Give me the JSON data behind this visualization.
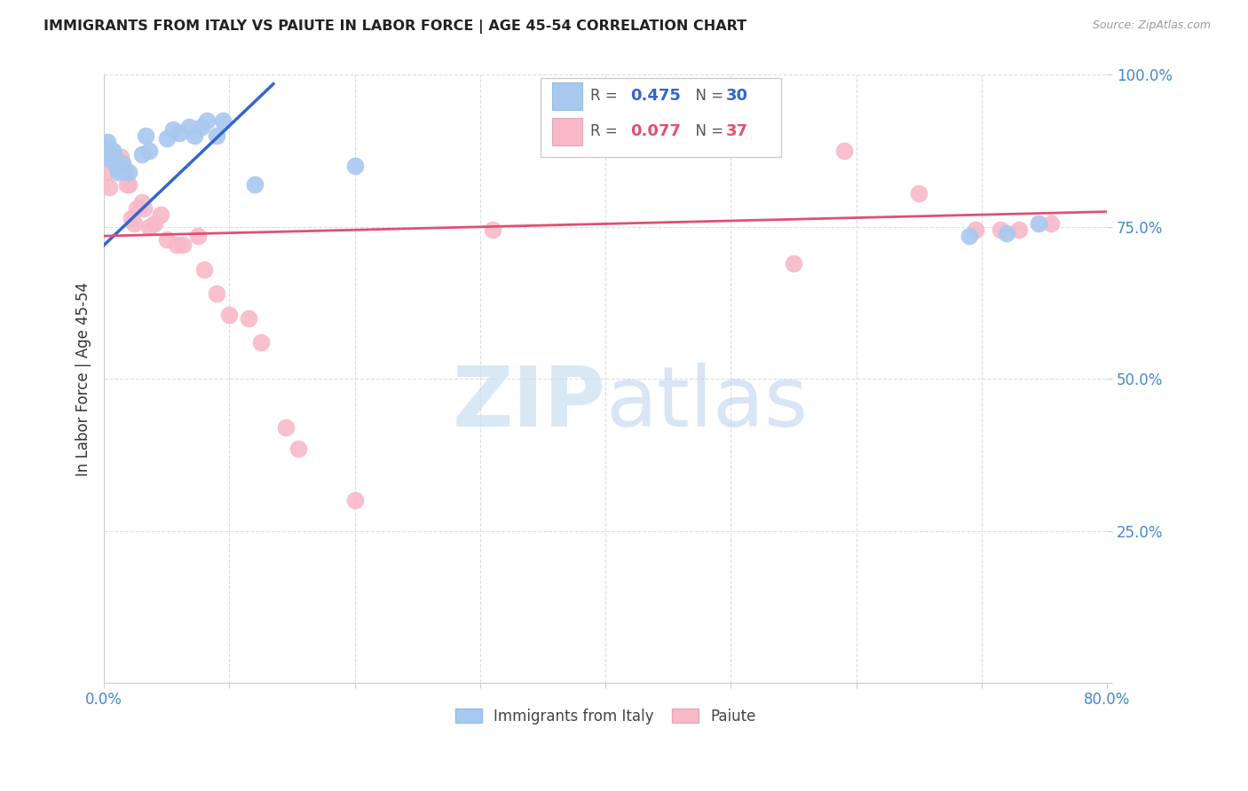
{
  "title": "IMMIGRANTS FROM ITALY VS PAIUTE IN LABOR FORCE | AGE 45-54 CORRELATION CHART",
  "source": "Source: ZipAtlas.com",
  "ylabel": "In Labor Force | Age 45-54",
  "x_min": 0.0,
  "x_max": 0.8,
  "y_min": 0.0,
  "y_max": 1.0,
  "x_ticks": [
    0.0,
    0.1,
    0.2,
    0.3,
    0.4,
    0.5,
    0.6,
    0.7,
    0.8
  ],
  "x_tick_labels": [
    "0.0%",
    "",
    "",
    "",
    "",
    "",
    "",
    "",
    "80.0%"
  ],
  "y_ticks": [
    0.0,
    0.25,
    0.5,
    0.75,
    1.0
  ],
  "y_tick_labels": [
    "",
    "25.0%",
    "50.0%",
    "75.0%",
    "100.0%"
  ],
  "italy_R": 0.475,
  "italy_N": 30,
  "paiute_R": 0.077,
  "paiute_N": 37,
  "italy_color": "#a8c8f0",
  "paiute_color": "#f8b8c8",
  "italy_line_color": "#3366cc",
  "paiute_line_color": "#e05070",
  "italy_scatter": [
    [
      0.002,
      0.88
    ],
    [
      0.003,
      0.89
    ],
    [
      0.004,
      0.87
    ],
    [
      0.005,
      0.86
    ],
    [
      0.006,
      0.875
    ],
    [
      0.007,
      0.875
    ],
    [
      0.008,
      0.87
    ],
    [
      0.01,
      0.85
    ],
    [
      0.011,
      0.84
    ],
    [
      0.013,
      0.845
    ],
    [
      0.015,
      0.855
    ],
    [
      0.017,
      0.84
    ],
    [
      0.02,
      0.84
    ],
    [
      0.03,
      0.87
    ],
    [
      0.033,
      0.9
    ],
    [
      0.036,
      0.875
    ],
    [
      0.05,
      0.895
    ],
    [
      0.055,
      0.91
    ],
    [
      0.06,
      0.905
    ],
    [
      0.068,
      0.915
    ],
    [
      0.072,
      0.9
    ],
    [
      0.078,
      0.915
    ],
    [
      0.082,
      0.925
    ],
    [
      0.09,
      0.9
    ],
    [
      0.095,
      0.925
    ],
    [
      0.12,
      0.82
    ],
    [
      0.2,
      0.85
    ],
    [
      0.69,
      0.735
    ],
    [
      0.72,
      0.74
    ],
    [
      0.745,
      0.755
    ]
  ],
  "paiute_scatter": [
    [
      0.002,
      0.84
    ],
    [
      0.004,
      0.815
    ],
    [
      0.006,
      0.875
    ],
    [
      0.008,
      0.86
    ],
    [
      0.01,
      0.86
    ],
    [
      0.013,
      0.865
    ],
    [
      0.015,
      0.855
    ],
    [
      0.018,
      0.82
    ],
    [
      0.02,
      0.82
    ],
    [
      0.022,
      0.765
    ],
    [
      0.024,
      0.755
    ],
    [
      0.026,
      0.78
    ],
    [
      0.03,
      0.79
    ],
    [
      0.032,
      0.78
    ],
    [
      0.036,
      0.75
    ],
    [
      0.04,
      0.755
    ],
    [
      0.045,
      0.77
    ],
    [
      0.05,
      0.73
    ],
    [
      0.058,
      0.72
    ],
    [
      0.063,
      0.72
    ],
    [
      0.075,
      0.735
    ],
    [
      0.08,
      0.68
    ],
    [
      0.09,
      0.64
    ],
    [
      0.1,
      0.605
    ],
    [
      0.115,
      0.6
    ],
    [
      0.125,
      0.56
    ],
    [
      0.145,
      0.42
    ],
    [
      0.155,
      0.385
    ],
    [
      0.2,
      0.3
    ],
    [
      0.31,
      0.745
    ],
    [
      0.55,
      0.69
    ],
    [
      0.59,
      0.875
    ],
    [
      0.65,
      0.805
    ],
    [
      0.695,
      0.745
    ],
    [
      0.715,
      0.745
    ],
    [
      0.73,
      0.745
    ],
    [
      0.755,
      0.755
    ]
  ],
  "italy_trend_x": [
    0.0,
    0.135
  ],
  "italy_trend_y": [
    0.72,
    0.985
  ],
  "paiute_trend_x": [
    0.0,
    0.8
  ],
  "paiute_trend_y": [
    0.735,
    0.775
  ],
  "watermark_zip": "ZIP",
  "watermark_atlas": "atlas",
  "background_color": "#ffffff",
  "grid_color": "#dddddd",
  "axis_tick_color": "#4488cc",
  "text_color": "#333333"
}
